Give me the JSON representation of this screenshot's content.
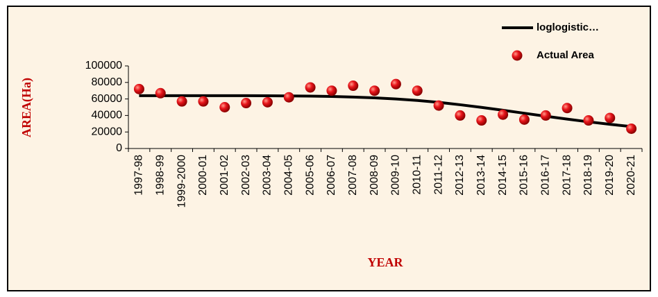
{
  "chart_data": {
    "type": "line",
    "x_label": "YEAR",
    "y_label": "AREA(Ha)",
    "categories": [
      "1997-98",
      "1998-99",
      "1999-2000",
      "2000-01",
      "2001-02",
      "2002-03",
      "2003-04",
      "2004-05",
      "2005-06",
      "2006-07",
      "2007-08",
      "2008-09",
      "2009-10",
      "2010-11",
      "2011-12",
      "2012-13",
      "2013-14",
      "2014-15",
      "2015-16",
      "2016-17",
      "2017-18",
      "2018-19",
      "2019-20",
      "2020-21"
    ],
    "series": [
      {
        "name": "loglogistic…",
        "color": "#000000",
        "style": "line",
        "values": [
          64000,
          64000,
          64000,
          64000,
          64000,
          64000,
          63900,
          63700,
          63400,
          63000,
          62300,
          61300,
          60000,
          58200,
          55900,
          53000,
          49800,
          46300,
          42700,
          39100,
          35600,
          32300,
          29300,
          26600
        ]
      },
      {
        "name": "Actual Area",
        "color": "#e8151b",
        "style": "markers",
        "values": [
          72000,
          67000,
          57000,
          57000,
          50000,
          55000,
          56000,
          62000,
          74000,
          70000,
          76000,
          70000,
          78000,
          70000,
          52000,
          40000,
          34000,
          41000,
          35000,
          40000,
          49000,
          34000,
          37000,
          24000
        ]
      }
    ],
    "ylim": [
      0,
      100000
    ],
    "yticks": [
      0,
      20000,
      40000,
      60000,
      80000,
      100000
    ],
    "grid": false,
    "legend": "top-right"
  }
}
